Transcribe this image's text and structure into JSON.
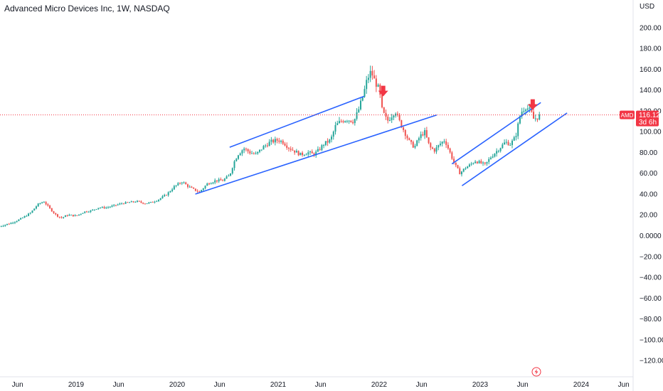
{
  "title": "Advanced Micro Devices Inc, 1W, NASDAQ",
  "colors": {
    "up": "#26a69a",
    "down": "#ef5350",
    "trend": "#2962ff",
    "arrow": "#f23645",
    "current_line": "#f23645",
    "axis_border": "#e0e3eb",
    "text": "#131722"
  },
  "chart_data": {
    "type": "candlestick",
    "title": "Advanced Micro Devices Inc, 1W, NASDAQ",
    "currency": "USD",
    "ylim": [
      -130,
      215
    ],
    "y_ticks": [
      "200.00",
      "180.00",
      "160.00",
      "140.00",
      "120.00",
      "100.00",
      "80.00",
      "60.00",
      "40.00",
      "20.00",
      "0.0000",
      "−20.00",
      "−40.00",
      "−60.00",
      "−80.00",
      "−100.00",
      "−120.00"
    ],
    "y_tick_values": [
      200,
      180,
      160,
      140,
      120,
      100,
      80,
      60,
      40,
      20,
      0,
      -20,
      -40,
      -60,
      -80,
      -100,
      -120
    ],
    "x_ticks": [
      "Jun",
      "2019",
      "Jun",
      "2020",
      "Jun",
      "2021",
      "Jun",
      "2022",
      "Jun",
      "2023",
      "Jun",
      "2024",
      "Jun"
    ],
    "x_tick_values": [
      2018.42,
      2019.0,
      2019.42,
      2020.0,
      2020.42,
      2021.0,
      2021.42,
      2022.0,
      2022.42,
      2023.0,
      2023.42,
      2024.0,
      2024.42
    ],
    "xlim": [
      2018.23,
      2024.52
    ],
    "current_price": {
      "symbol": "AMD",
      "value": 116.12,
      "countdown": "3d 6h"
    },
    "price_path": [
      [
        2018.24,
        9
      ],
      [
        2018.35,
        12
      ],
      [
        2018.45,
        16
      ],
      [
        2018.55,
        22
      ],
      [
        2018.62,
        30
      ],
      [
        2018.68,
        33
      ],
      [
        2018.74,
        26
      ],
      [
        2018.8,
        20
      ],
      [
        2018.85,
        17
      ],
      [
        2018.92,
        20
      ],
      [
        2019.0,
        19
      ],
      [
        2019.08,
        23
      ],
      [
        2019.15,
        24
      ],
      [
        2019.22,
        27
      ],
      [
        2019.3,
        27
      ],
      [
        2019.38,
        29
      ],
      [
        2019.45,
        31
      ],
      [
        2019.52,
        32
      ],
      [
        2019.6,
        33
      ],
      [
        2019.68,
        31
      ],
      [
        2019.75,
        32
      ],
      [
        2019.82,
        35
      ],
      [
        2019.9,
        40
      ],
      [
        2019.97,
        47
      ],
      [
        2020.05,
        52
      ],
      [
        2020.1,
        48
      ],
      [
        2020.15,
        45
      ],
      [
        2020.22,
        42
      ],
      [
        2020.3,
        50
      ],
      [
        2020.38,
        53
      ],
      [
        2020.45,
        53
      ],
      [
        2020.52,
        58
      ],
      [
        2020.56,
        70
      ],
      [
        2020.6,
        78
      ],
      [
        2020.66,
        84
      ],
      [
        2020.72,
        80
      ],
      [
        2020.78,
        78
      ],
      [
        2020.85,
        85
      ],
      [
        2020.92,
        90
      ],
      [
        2021.0,
        92
      ],
      [
        2021.05,
        90
      ],
      [
        2021.1,
        85
      ],
      [
        2021.15,
        82
      ],
      [
        2021.22,
        78
      ],
      [
        2021.3,
        80
      ],
      [
        2021.35,
        78
      ],
      [
        2021.4,
        82
      ],
      [
        2021.45,
        88
      ],
      [
        2021.52,
        92
      ],
      [
        2021.57,
        106
      ],
      [
        2021.62,
        110
      ],
      [
        2021.68,
        112
      ],
      [
        2021.75,
        110
      ],
      [
        2021.8,
        122
      ],
      [
        2021.85,
        138
      ],
      [
        2021.88,
        150
      ],
      [
        2021.92,
        158
      ],
      [
        2021.95,
        150
      ],
      [
        2022.0,
        140
      ],
      [
        2022.03,
        120
      ],
      [
        2022.08,
        110
      ],
      [
        2022.12,
        115
      ],
      [
        2022.16,
        120
      ],
      [
        2022.2,
        110
      ],
      [
        2022.25,
        100
      ],
      [
        2022.3,
        90
      ],
      [
        2022.35,
        85
      ],
      [
        2022.4,
        95
      ],
      [
        2022.45,
        100
      ],
      [
        2022.5,
        85
      ],
      [
        2022.55,
        82
      ],
      [
        2022.6,
        88
      ],
      [
        2022.65,
        92
      ],
      [
        2022.7,
        80
      ],
      [
        2022.75,
        68
      ],
      [
        2022.8,
        60
      ],
      [
        2022.85,
        65
      ],
      [
        2022.9,
        68
      ],
      [
        2022.95,
        72
      ],
      [
        2023.0,
        70
      ],
      [
        2023.05,
        68
      ],
      [
        2023.1,
        75
      ],
      [
        2023.15,
        80
      ],
      [
        2023.2,
        85
      ],
      [
        2023.25,
        90
      ],
      [
        2023.3,
        88
      ],
      [
        2023.35,
        95
      ],
      [
        2023.4,
        118
      ],
      [
        2023.45,
        124
      ],
      [
        2023.5,
        120
      ],
      [
        2023.53,
        112
      ],
      [
        2023.57,
        114
      ],
      [
        2023.6,
        116
      ]
    ],
    "annotations": {
      "trendlines": [
        {
          "from": [
            2020.52,
            85
          ],
          "to": [
            2021.85,
            134
          ]
        },
        {
          "from": [
            2020.18,
            40
          ],
          "to": [
            2022.57,
            116
          ]
        },
        {
          "from": [
            2022.72,
            69
          ],
          "to": [
            2023.6,
            128
          ]
        },
        {
          "from": [
            2022.82,
            48
          ],
          "to": [
            2023.86,
            118
          ]
        }
      ],
      "down_arrows": [
        {
          "x": 2022.04,
          "y": 138
        },
        {
          "x": 2023.52,
          "y": 125
        }
      ]
    }
  }
}
